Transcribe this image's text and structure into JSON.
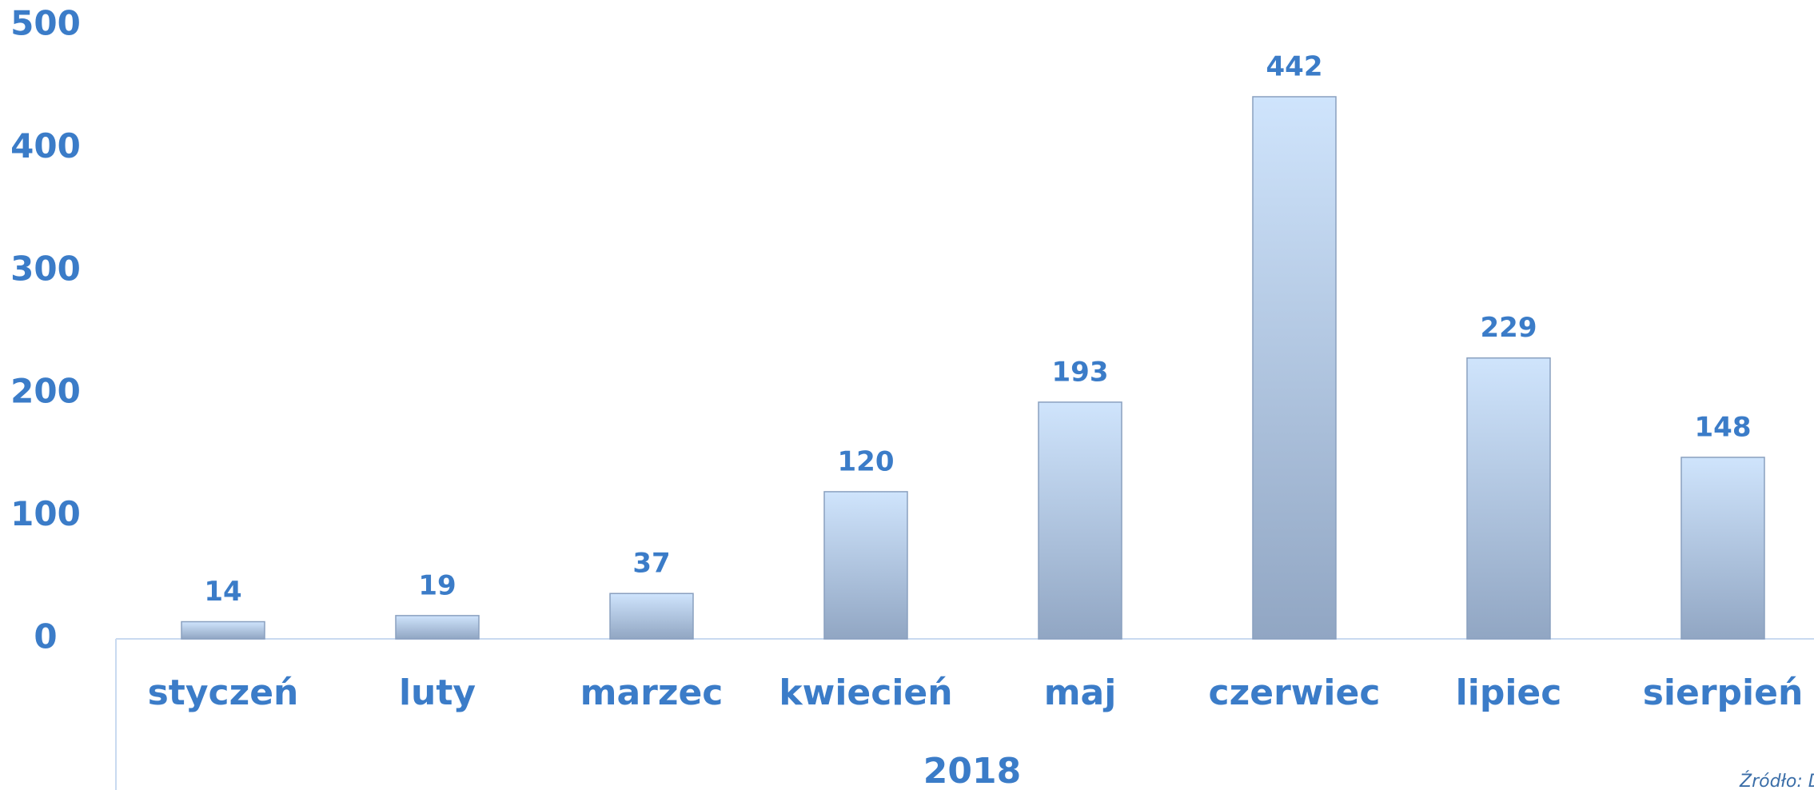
{
  "chart_data": {
    "type": "bar",
    "categories": [
      "styczeń",
      "luty",
      "marzec",
      "kwiecień",
      "maj",
      "czerwiec",
      "lipiec",
      "sierpień"
    ],
    "values": [
      14,
      19,
      37,
      120,
      193,
      442,
      229,
      148
    ],
    "group_label": "2018",
    "source": "Źródło: D",
    "color": "#aec6e6",
    "ylim": [
      0,
      500
    ],
    "yticks": [
      0,
      100,
      200,
      300,
      400,
      500
    ],
    "grid": false
  }
}
